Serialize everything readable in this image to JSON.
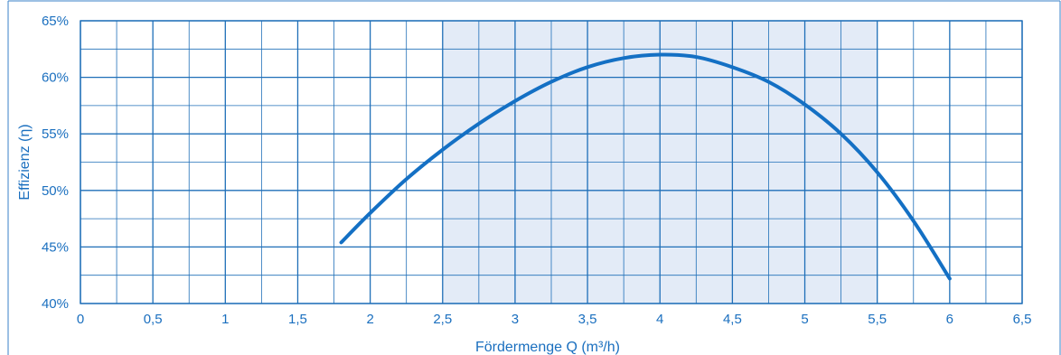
{
  "chart_data": {
    "type": "line",
    "title": "",
    "xlabel": "Fördermenge Q (m³/h)",
    "ylabel": "Effizienz (η)",
    "xlim": [
      0,
      6.5
    ],
    "ylim": [
      40,
      65
    ],
    "x_ticks": [
      "0",
      "0,5",
      "1",
      "1,5",
      "2",
      "2,5",
      "3",
      "3,5",
      "4",
      "4,5",
      "5",
      "5,5",
      "6",
      "6,5"
    ],
    "y_ticks": [
      "40%",
      "45%",
      "50%",
      "55%",
      "60%",
      "65%"
    ],
    "grid": true,
    "highlight_range": [
      2.5,
      5.5
    ],
    "series": [
      {
        "x": [
          1.8,
          2.0,
          2.25,
          2.5,
          2.75,
          3.0,
          3.25,
          3.5,
          3.75,
          4.0,
          4.25,
          4.5,
          4.75,
          5.0,
          5.25,
          5.5,
          5.75,
          6.0
        ],
        "y": [
          45.4,
          48.0,
          51.0,
          53.6,
          55.9,
          57.9,
          59.6,
          60.9,
          61.7,
          62.0,
          61.8,
          60.9,
          59.6,
          57.6,
          55.0,
          51.6,
          47.3,
          42.2
        ]
      }
    ]
  },
  "colors": {
    "accent": "#1a6fbf",
    "curve": "#1470c4",
    "grid": "#1f6fb8",
    "highlight": "#e3ebf7",
    "frame": "#3a80c8"
  }
}
